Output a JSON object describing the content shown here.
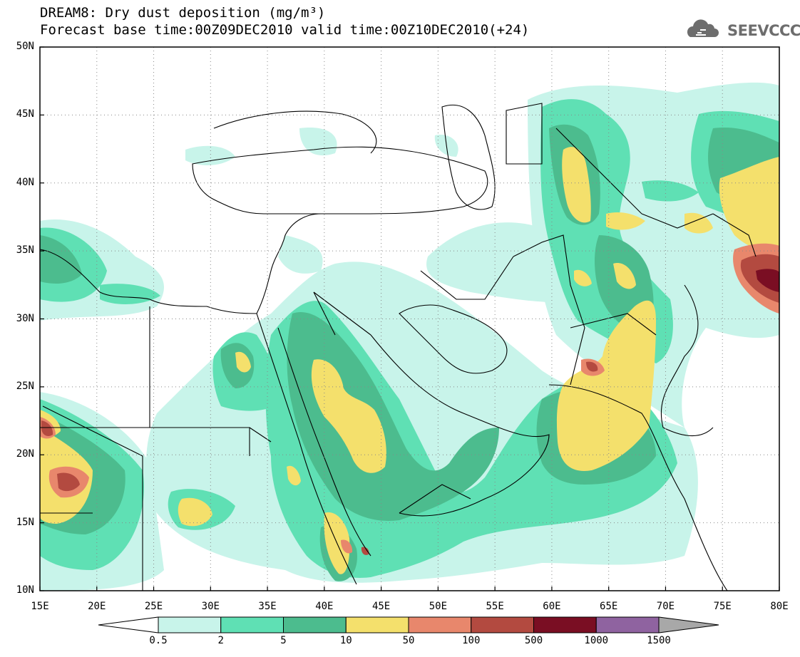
{
  "title": {
    "line1": "DREAM8: Dry dust deposition (mg/m³)",
    "line2": "Forecast base time:00Z09DEC2010 valid time:00Z10DEC2010(+24)"
  },
  "logo": {
    "text": "SEEVCCC",
    "icon": "cloud-logo-icon"
  },
  "axes": {
    "lat_labels": [
      "50N",
      "45N",
      "40N",
      "35N",
      "30N",
      "25N",
      "20N",
      "15N",
      "10N"
    ],
    "lon_labels": [
      "15E",
      "20E",
      "25E",
      "30E",
      "35E",
      "40E",
      "45E",
      "50E",
      "55E",
      "60E",
      "65E",
      "70E",
      "75E",
      "80E"
    ],
    "lat_range": [
      10,
      50
    ],
    "lon_range": [
      15,
      80
    ],
    "grid": "dotted"
  },
  "colorbar": {
    "labels": [
      "0.5",
      "2",
      "5",
      "10",
      "50",
      "100",
      "500",
      "1000",
      "1500"
    ],
    "colors": [
      "#ffffff",
      "#c8f4ea",
      "#5fe0b4",
      "#4cbc8e",
      "#f4e06c",
      "#e8876c",
      "#b34a40",
      "#7a0e23",
      "#8f63a0",
      "#a8a8a8"
    ]
  },
  "field_colors": {
    "c05": "#c8f4ea",
    "c2": "#5fe0b4",
    "c5": "#4cbc8e",
    "c10": "#f4e06c",
    "c50": "#e8876c",
    "c100": "#b34a40",
    "c500": "#7a0e23"
  }
}
